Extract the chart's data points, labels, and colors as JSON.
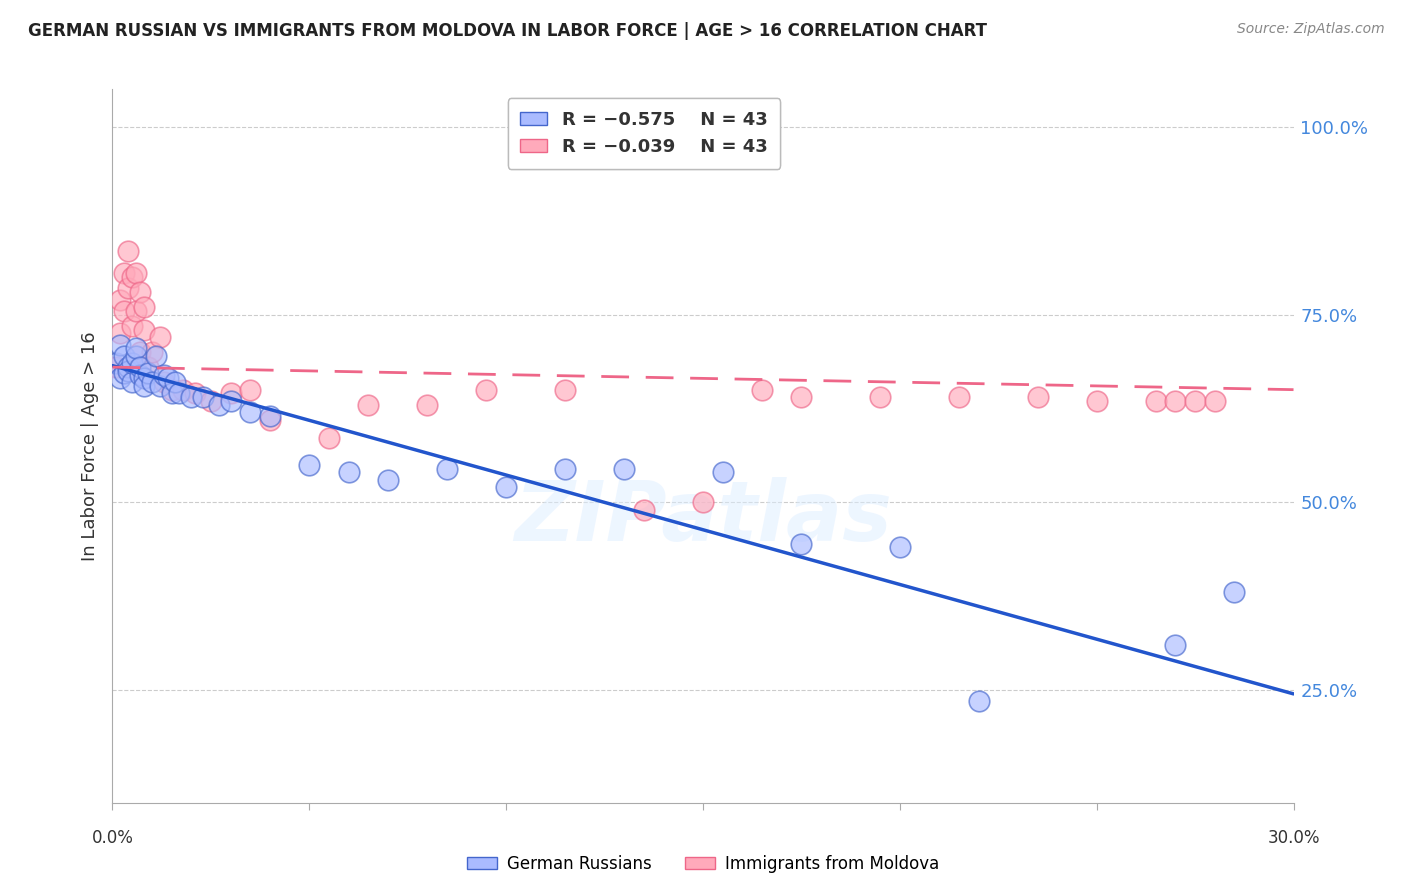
{
  "title": "GERMAN RUSSIAN VS IMMIGRANTS FROM MOLDOVA IN LABOR FORCE | AGE > 16 CORRELATION CHART",
  "source": "Source: ZipAtlas.com",
  "ylabel": "In Labor Force | Age > 16",
  "right_ytick_labels": [
    "100.0%",
    "75.0%",
    "50.0%",
    "25.0%"
  ],
  "right_ytick_vals": [
    1.0,
    0.75,
    0.5,
    0.25
  ],
  "xlim": [
    0.0,
    0.3
  ],
  "ylim": [
    0.1,
    1.05
  ],
  "legend_r_blue": "R = −0.575",
  "legend_n_blue": "N = 43",
  "legend_r_pink": "R = −0.039",
  "legend_n_pink": "N = 43",
  "blue_fill": "#AABBFF",
  "blue_edge": "#4466CC",
  "pink_fill": "#FFAABB",
  "pink_edge": "#EE6688",
  "line_blue_color": "#2255CC",
  "line_pink_color": "#EE6688",
  "right_axis_color": "#4488DD",
  "watermark_text": "ZIPatlas",
  "grid_color": "#CCCCCC",
  "bg_color": "#FFFFFF",
  "title_color": "#222222",
  "source_color": "#888888",
  "blue_x": [
    0.001,
    0.002,
    0.002,
    0.003,
    0.003,
    0.004,
    0.004,
    0.005,
    0.005,
    0.006,
    0.006,
    0.007,
    0.007,
    0.008,
    0.008,
    0.009,
    0.01,
    0.011,
    0.012,
    0.013,
    0.014,
    0.015,
    0.016,
    0.017,
    0.02,
    0.023,
    0.027,
    0.03,
    0.035,
    0.04,
    0.05,
    0.06,
    0.07,
    0.085,
    0.1,
    0.115,
    0.13,
    0.155,
    0.175,
    0.2,
    0.22,
    0.27,
    0.285
  ],
  "blue_y": [
    0.685,
    0.665,
    0.71,
    0.672,
    0.695,
    0.68,
    0.675,
    0.66,
    0.685,
    0.695,
    0.705,
    0.67,
    0.68,
    0.665,
    0.655,
    0.672,
    0.66,
    0.695,
    0.655,
    0.67,
    0.665,
    0.645,
    0.66,
    0.645,
    0.64,
    0.64,
    0.63,
    0.635,
    0.62,
    0.615,
    0.55,
    0.54,
    0.53,
    0.545,
    0.52,
    0.545,
    0.545,
    0.54,
    0.445,
    0.44,
    0.235,
    0.31,
    0.38
  ],
  "pink_x": [
    0.001,
    0.002,
    0.002,
    0.003,
    0.003,
    0.004,
    0.004,
    0.005,
    0.005,
    0.006,
    0.006,
    0.007,
    0.007,
    0.008,
    0.008,
    0.009,
    0.01,
    0.012,
    0.013,
    0.015,
    0.018,
    0.021,
    0.025,
    0.03,
    0.035,
    0.04,
    0.055,
    0.065,
    0.08,
    0.095,
    0.115,
    0.135,
    0.15,
    0.165,
    0.175,
    0.195,
    0.215,
    0.235,
    0.25,
    0.265,
    0.27,
    0.275,
    0.28
  ],
  "pink_y": [
    0.68,
    0.77,
    0.725,
    0.805,
    0.755,
    0.835,
    0.785,
    0.8,
    0.735,
    0.755,
    0.805,
    0.7,
    0.78,
    0.73,
    0.76,
    0.68,
    0.7,
    0.72,
    0.66,
    0.65,
    0.65,
    0.645,
    0.635,
    0.645,
    0.65,
    0.61,
    0.585,
    0.63,
    0.63,
    0.65,
    0.65,
    0.49,
    0.5,
    0.65,
    0.64,
    0.64,
    0.64,
    0.64,
    0.635,
    0.635,
    0.635,
    0.635,
    0.635
  ],
  "blue_line": [
    0.0,
    0.3,
    0.682,
    0.245
  ],
  "pink_line": [
    0.0,
    0.3,
    0.68,
    0.65
  ],
  "marker_size": 220,
  "marker_alpha": 0.65,
  "marker_lw": 1.2
}
